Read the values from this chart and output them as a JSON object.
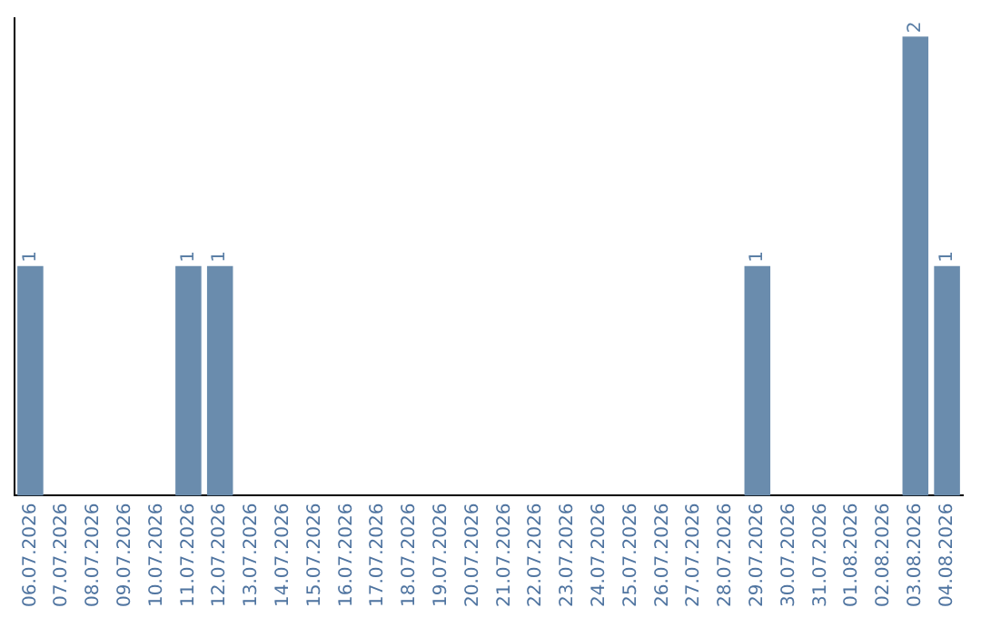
{
  "chart_data": {
    "type": "bar",
    "categories": [
      "06.07.2026",
      "07.07.2026",
      "08.07.2026",
      "09.07.2026",
      "10.07.2026",
      "11.07.2026",
      "12.07.2026",
      "13.07.2026",
      "14.07.2026",
      "15.07.2026",
      "16.07.2026",
      "17.07.2026",
      "18.07.2026",
      "19.07.2026",
      "20.07.2026",
      "21.07.2026",
      "22.07.2026",
      "23.07.2026",
      "24.07.2026",
      "25.07.2026",
      "26.07.2026",
      "27.07.2026",
      "28.07.2026",
      "29.07.2026",
      "30.07.2026",
      "31.07.2026",
      "01.08.2026",
      "02.08.2026",
      "03.08.2026",
      "04.08.2026"
    ],
    "values": [
      1,
      0,
      0,
      0,
      0,
      1,
      1,
      0,
      0,
      0,
      0,
      0,
      0,
      0,
      0,
      0,
      0,
      0,
      0,
      0,
      0,
      0,
      0,
      1,
      0,
      0,
      0,
      0,
      2,
      1
    ],
    "value_labels": [
      "1",
      null,
      null,
      null,
      null,
      "1",
      "1",
      null,
      null,
      null,
      null,
      null,
      null,
      null,
      null,
      null,
      null,
      null,
      null,
      null,
      null,
      null,
      null,
      "1",
      null,
      null,
      null,
      null,
      "2",
      "1"
    ],
    "color": "#6a8cad",
    "ylim": [
      0,
      2.08
    ],
    "tick_labels": "x",
    "grid": false,
    "legend": false
  }
}
